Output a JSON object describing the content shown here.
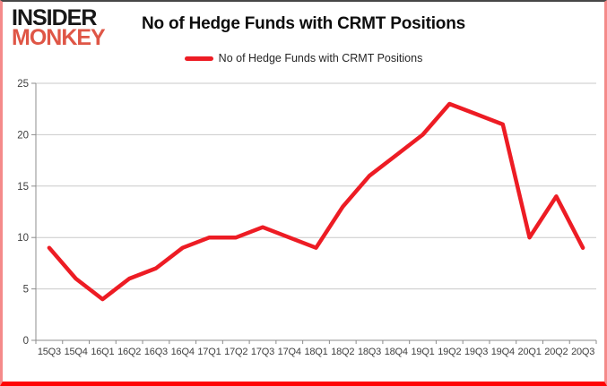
{
  "brand": {
    "line1": "INSIDER",
    "line2": "MONKEY"
  },
  "header": {
    "title": "No of Hedge Funds with CRMT Positions"
  },
  "legend": {
    "label": "No of Hedge Funds with CRMT Positions",
    "swatch_color": "#ed1c24"
  },
  "colors": {
    "line": "#ed1c24",
    "brand_accent": "#df5646",
    "gridline": "#c9c9c9",
    "axis": "#8c8c8c",
    "tick_label": "#3f3f3f",
    "border_bottom": "#ff0404"
  },
  "chart_data": {
    "type": "line",
    "title": "No of Hedge Funds with CRMT Positions",
    "categories": [
      "15Q3",
      "15Q4",
      "16Q1",
      "16Q2",
      "16Q3",
      "16Q4",
      "17Q1",
      "17Q2",
      "17Q3",
      "17Q4",
      "18Q1",
      "18Q2",
      "18Q3",
      "18Q4",
      "19Q1",
      "19Q2",
      "19Q3",
      "19Q4",
      "20Q1",
      "20Q2",
      "20Q3"
    ],
    "series": [
      {
        "name": "No of Hedge Funds with CRMT Positions",
        "color": "#ed1c24",
        "values": [
          9,
          6,
          4,
          6,
          7,
          9,
          10,
          10,
          11,
          10,
          9,
          13,
          16,
          18,
          20,
          23,
          22,
          21,
          10,
          14,
          9
        ]
      }
    ],
    "xlabel": "",
    "ylabel": "",
    "ylim": [
      0,
      25
    ],
    "yticks": [
      0,
      5,
      10,
      15,
      20,
      25
    ],
    "grid": true,
    "legend_position": "top"
  }
}
